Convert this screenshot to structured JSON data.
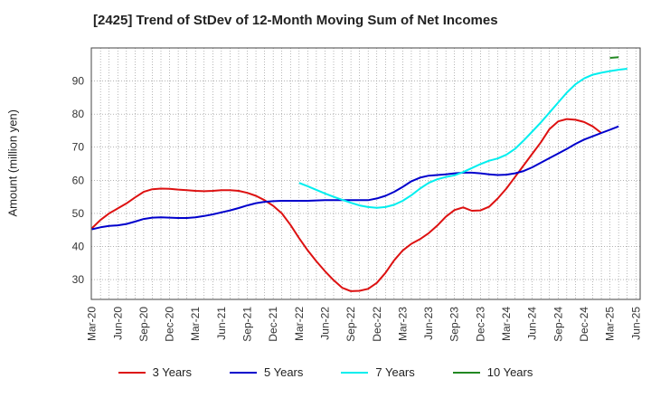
{
  "chart_data": {
    "type": "line",
    "title": "[2425]  Trend of StDev of 12-Month Moving Sum of Net Incomes",
    "ylabel": "Amount (million yen)",
    "xlabel": "",
    "ylim": [
      24,
      100
    ],
    "yticks": [
      30,
      40,
      50,
      60,
      70,
      80,
      90
    ],
    "xticks": [
      "Mar-20",
      "Jun-20",
      "Sep-20",
      "Dec-20",
      "Mar-21",
      "Jun-21",
      "Sep-21",
      "Dec-21",
      "Mar-22",
      "Jun-22",
      "Sep-22",
      "Dec-22",
      "Mar-23",
      "Jun-23",
      "Sep-23",
      "Dec-23",
      "Mar-24",
      "Jun-24",
      "Sep-24",
      "Dec-24",
      "Mar-25",
      "Jun-25"
    ],
    "grid": true,
    "legend_position": "bottom",
    "series": [
      {
        "name": "3 Years",
        "color": "#dd1111",
        "start_index": 0,
        "values": [
          45.5,
          48,
          50,
          51.5,
          53,
          54.8,
          56.5,
          57.3,
          57.5,
          57.4,
          57.2,
          57,
          56.8,
          56.7,
          56.8,
          57,
          57,
          56.8,
          56.2,
          55.3,
          54,
          52.3,
          50,
          46.5,
          42.5,
          38.8,
          35.5,
          32.5,
          29.8,
          27.5,
          26.5,
          26.6,
          27.2,
          29,
          32,
          35.8,
          38.8,
          40.8,
          42.2,
          44,
          46.3,
          49,
          51,
          51.8,
          50.8,
          50.9,
          52,
          54.5,
          57.5,
          61,
          64.5,
          68,
          71.5,
          75.5,
          77.8,
          78.5,
          78.3,
          77.6,
          76.3,
          74.3
        ]
      },
      {
        "name": "5 Years",
        "color": "#0000cc",
        "start_index": 0,
        "values": [
          45.2,
          45.8,
          46.2,
          46.4,
          46.8,
          47.5,
          48.3,
          48.7,
          48.8,
          48.7,
          48.6,
          48.6,
          48.8,
          49.2,
          49.7,
          50.3,
          50.9,
          51.6,
          52.4,
          53.1,
          53.5,
          53.7,
          53.8,
          53.8,
          53.8,
          53.8,
          53.9,
          54,
          54,
          54,
          54,
          54,
          54,
          54.5,
          55.3,
          56.5,
          58,
          59.7,
          60.8,
          61.4,
          61.6,
          61.8,
          62.1,
          62.3,
          62.3,
          62.1,
          61.8,
          61.6,
          61.7,
          62.1,
          62.8,
          63.9,
          65.3,
          66.7,
          68.1,
          69.5,
          71,
          72.3,
          73.3,
          74.3,
          75.3,
          76.3
        ]
      },
      {
        "name": "7 Years",
        "color": "#00eeee",
        "start_index": 24,
        "values": [
          59.2,
          58.2,
          57.1,
          56,
          55,
          54.1,
          53.2,
          52.4,
          51.9,
          51.7,
          51.9,
          52.6,
          53.8,
          55.5,
          57.5,
          59.2,
          60.3,
          61,
          61.5,
          62.5,
          63.7,
          64.9,
          65.9,
          66.6,
          67.7,
          69.5,
          72,
          74.7,
          77.5,
          80.5,
          83.5,
          86.5,
          89,
          90.8,
          91.9,
          92.5,
          93,
          93.4,
          93.7
        ]
      },
      {
        "name": "10 Years",
        "color": "#228822",
        "start_index": 60,
        "values": [
          97,
          97.2
        ]
      }
    ]
  }
}
